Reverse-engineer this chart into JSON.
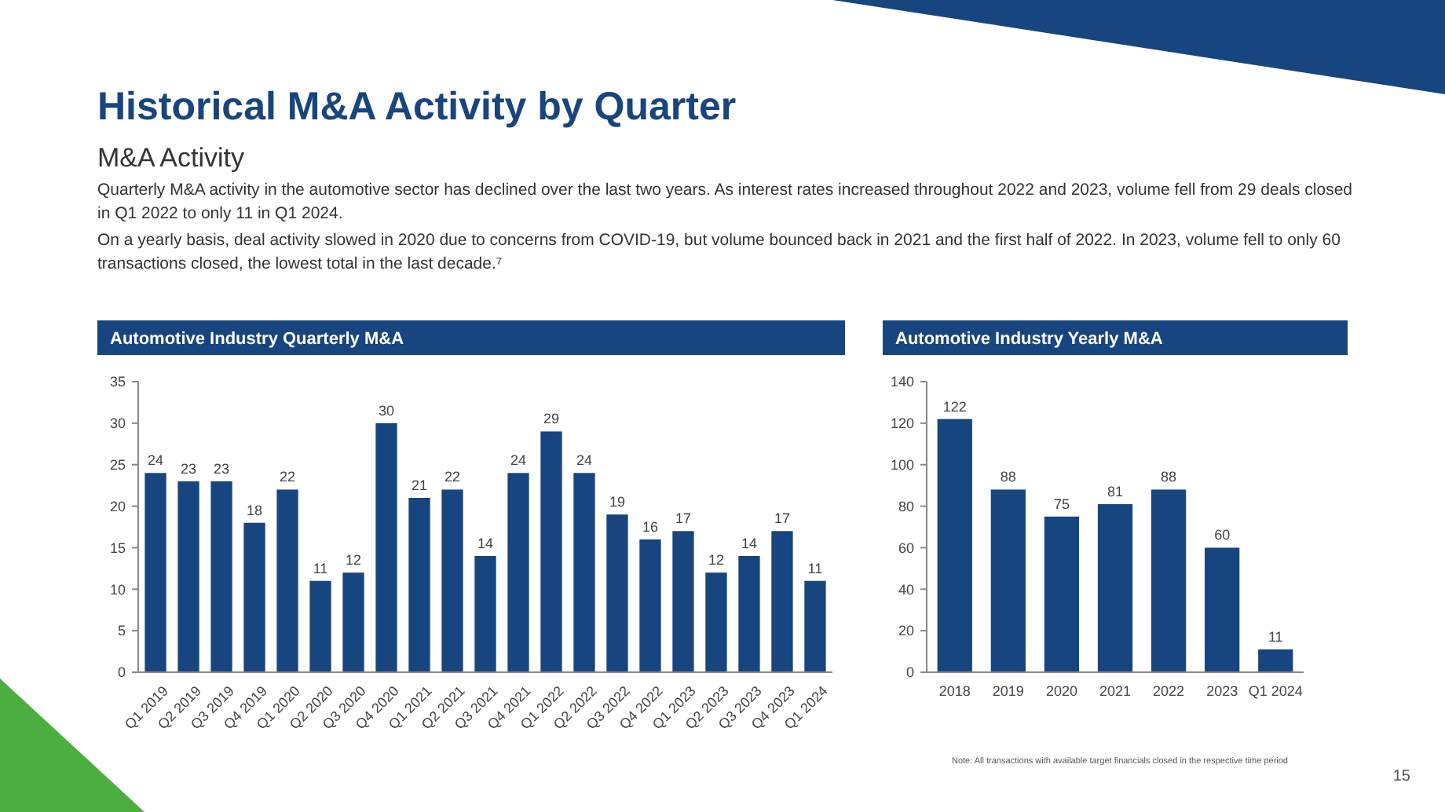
{
  "chart_data": [
    {
      "type": "other",
      "title": "Historical M&A Activity by Quarter",
      "subtitle": "M&A Activity",
      "annotations": [
        "Quarterly M&A activity in the automotive sector has declined over the last two years. As interest rates increased throughout 2022 and 2023, volume fell from 29 deals closed in Q1 2022 to only 11 in Q1 2024.",
        "On a yearly basis, deal activity slowed in 2020 due to concerns from COVID-19, but volume bounced back in 2021 and the first half of 2022. In 2023, volume fell to only 60 transactions closed, the lowest total in the last decade.⁷",
        "Note: All transactions with available target financials closed in the respective time period",
        "15"
      ]
    },
    {
      "type": "bar",
      "title": "Automotive Industry Quarterly M&A",
      "categories": [
        "Q1 2019",
        "Q2 2019",
        "Q3 2019",
        "Q4 2019",
        "Q1 2020",
        "Q2 2020",
        "Q3 2020",
        "Q4 2020",
        "Q1 2021",
        "Q2 2021",
        "Q3 2021",
        "Q4 2021",
        "Q1 2022",
        "Q2 2022",
        "Q3 2022",
        "Q4 2022",
        "Q1 2023",
        "Q2 2023",
        "Q3 2023",
        "Q4 2023",
        "Q1 2024"
      ],
      "values": [
        24,
        23,
        23,
        18,
        22,
        11,
        12,
        30,
        21,
        22,
        14,
        24,
        29,
        24,
        19,
        16,
        17,
        12,
        14,
        17,
        11
      ],
      "color": "#17457f",
      "ylim": [
        0,
        35
      ],
      "yticks": [
        0,
        5,
        10,
        15,
        20,
        25,
        30,
        35
      ],
      "data_labels": true,
      "grid": false
    },
    {
      "type": "bar",
      "title": "Automotive Industry Yearly M&A",
      "categories": [
        "2018",
        "2019",
        "2020",
        "2021",
        "2022",
        "2023",
        "Q1 2024"
      ],
      "values": [
        122,
        88,
        75,
        81,
        88,
        60,
        11
      ],
      "color": "#17457f",
      "ylim": [
        0,
        140
      ],
      "yticks": [
        0,
        20,
        40,
        60,
        80,
        100,
        120,
        140
      ],
      "data_labels": true,
      "grid": false
    }
  ]
}
